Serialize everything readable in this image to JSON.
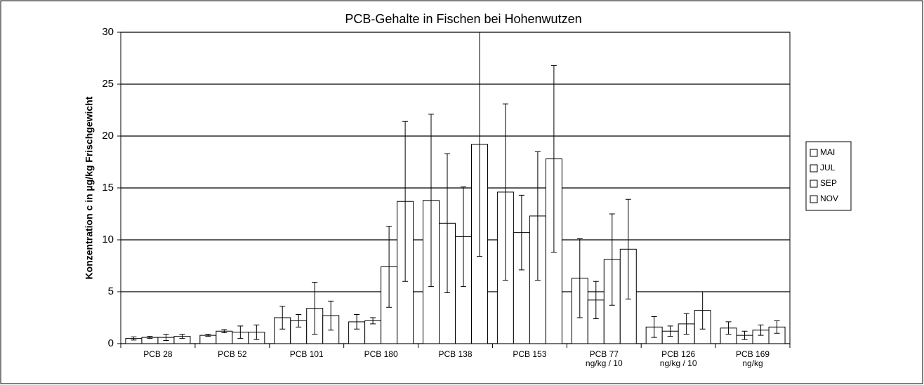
{
  "chart_data": {
    "type": "bar",
    "title": "PCB-Gehalte in Fischen bei Hohenwutzen",
    "y_label": "Konzentration c in µg/kg Frischgewicht",
    "categories": [
      [
        "PCB 28"
      ],
      [
        "PCB 52"
      ],
      [
        "PCB 101"
      ],
      [
        "PCB 180"
      ],
      [
        "PCB 138"
      ],
      [
        "PCB 153"
      ],
      [
        "PCB 77",
        "ng/kg / 10"
      ],
      [
        "PCB 126",
        "ng/kg / 10"
      ],
      [
        "PCB 169",
        "ng/kg"
      ]
    ],
    "series": [
      {
        "name": "MAI",
        "color": "#ffffff",
        "values": [
          0.5,
          0.8,
          2.5,
          2.1,
          13.8,
          14.6,
          6.3,
          1.6,
          1.5
        ],
        "errors": [
          0.15,
          0.1,
          1.1,
          0.7,
          8.3,
          8.5,
          3.8,
          1.0,
          0.6
        ]
      },
      {
        "name": "JUL",
        "color": "#ffffff",
        "values": [
          0.6,
          1.2,
          2.2,
          2.2,
          11.6,
          10.7,
          4.2,
          1.2,
          0.8
        ],
        "errors": [
          0.1,
          0.15,
          0.6,
          0.3,
          6.7,
          3.6,
          1.8,
          0.5,
          0.4
        ]
      },
      {
        "name": "SEP",
        "color": "#ffffff",
        "values": [
          0.6,
          1.1,
          3.4,
          7.4,
          10.3,
          12.3,
          8.1,
          1.9,
          1.3
        ],
        "errors": [
          0.3,
          0.6,
          2.5,
          3.9,
          4.8,
          6.2,
          4.4,
          1.0,
          0.5
        ]
      },
      {
        "name": "NOV",
        "color": "#ffffff",
        "values": [
          0.7,
          1.1,
          2.7,
          13.7,
          19.2,
          17.8,
          9.1,
          3.2,
          1.6
        ],
        "errors": [
          0.2,
          0.7,
          1.4,
          7.7,
          10.8,
          9.0,
          4.8,
          1.8,
          0.6
        ]
      }
    ],
    "ylim": [
      0,
      30
    ],
    "yticks": [
      0,
      5,
      10,
      15,
      20,
      25,
      30
    ],
    "grid": true,
    "legend": "right"
  }
}
